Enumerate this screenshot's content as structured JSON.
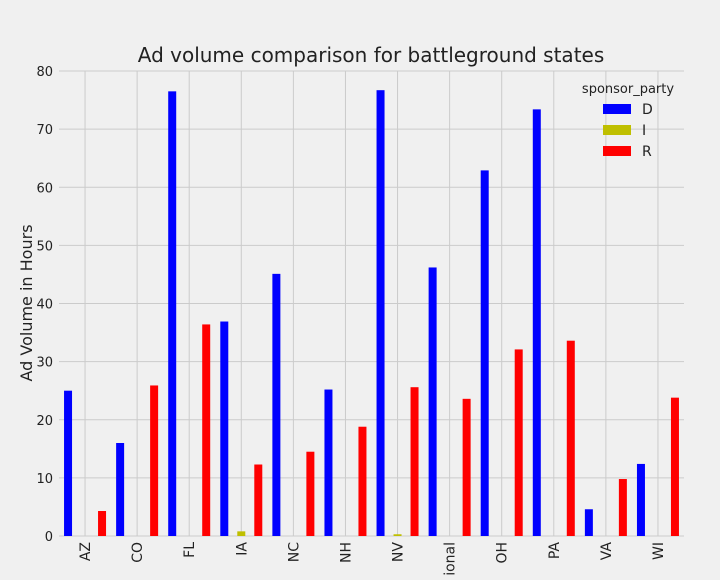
{
  "chart_data": {
    "type": "bar",
    "title": "Ad volume comparison for battleground states",
    "xlabel": "",
    "ylabel": "Ad Volume in Hours",
    "ylim": [
      0,
      80
    ],
    "yticks": [
      0,
      10,
      20,
      30,
      40,
      50,
      60,
      70,
      80
    ],
    "grid": true,
    "legend": {
      "title": "sponsor_party",
      "position": "top-right"
    },
    "categories": [
      "AZ",
      "CO",
      "FL",
      "IA",
      "NC",
      "NH",
      "NV",
      "National",
      "OH",
      "PA",
      "VA",
      "WI"
    ],
    "series": [
      {
        "name": "D",
        "color": "#0000ff",
        "values": [
          25.0,
          16.0,
          76.5,
          36.9,
          45.1,
          25.2,
          76.7,
          46.2,
          62.9,
          73.4,
          4.6,
          12.4
        ]
      },
      {
        "name": "I",
        "color": "#bfbf00",
        "values": [
          0,
          0,
          0,
          0.8,
          0,
          0,
          0.3,
          0,
          0,
          0,
          0,
          0
        ]
      },
      {
        "name": "R",
        "color": "#ff0000",
        "values": [
          4.3,
          25.9,
          36.4,
          12.3,
          14.5,
          18.8,
          25.6,
          23.6,
          32.1,
          33.6,
          9.8,
          23.8
        ]
      }
    ]
  }
}
